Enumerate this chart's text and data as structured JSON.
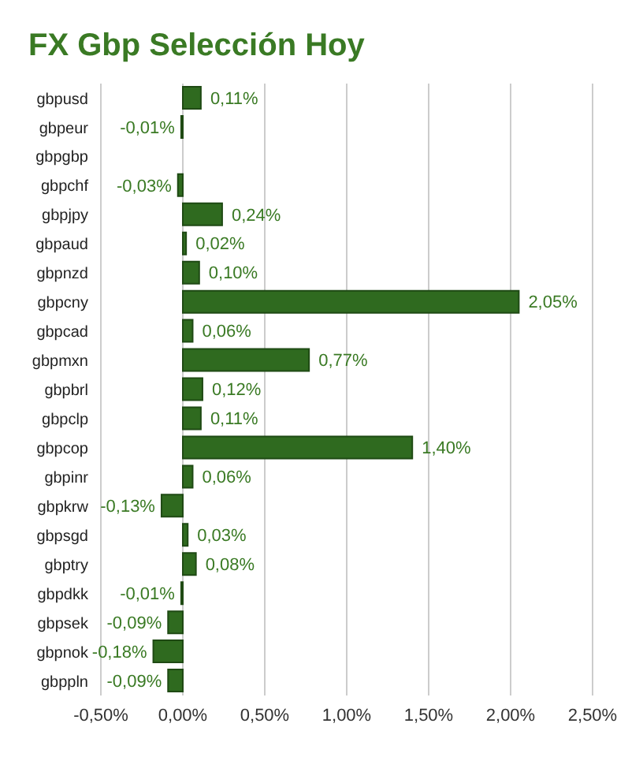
{
  "chart_data": {
    "type": "bar",
    "orientation": "horizontal",
    "title": "FX Gbp Selección Hoy",
    "categories": [
      "gbpusd",
      "gbpeur",
      "gbpgbp",
      "gbpchf",
      "gbpjpy",
      "gbpaud",
      "gbpnzd",
      "gbpcny",
      "gbpcad",
      "gbpmxn",
      "gbpbrl",
      "gbpclp",
      "gbpcop",
      "gbpinr",
      "gbpkrw",
      "gbpsgd",
      "gbptry",
      "gbpdkk",
      "gbpsek",
      "gbpnok",
      "gbppln"
    ],
    "values": [
      0.11,
      -0.01,
      0,
      -0.03,
      0.24,
      0.02,
      0.1,
      2.05,
      0.06,
      0.77,
      0.12,
      0.11,
      1.4,
      0.06,
      -0.13,
      0.03,
      0.08,
      -0.01,
      -0.09,
      -0.18,
      -0.09
    ],
    "value_labels": [
      "0,11%",
      "-0,01%",
      null,
      "-0,03%",
      "0,24%",
      "0,02%",
      "0,10%",
      "2,05%",
      "0,06%",
      "0,77%",
      "0,12%",
      "0,11%",
      "1,40%",
      "0,06%",
      "-0,13%",
      "0,03%",
      "0,08%",
      "-0,01%",
      "-0,09%",
      "-0,18%",
      "-0,09%"
    ],
    "color": "#2f6a1f",
    "xlim": [
      -0.5,
      2.5
    ],
    "xticks": [
      {
        "value": -0.5,
        "label": "-0,50%"
      },
      {
        "value": 0,
        "label": "0,00%"
      },
      {
        "value": 0.5,
        "label": "0,50%"
      },
      {
        "value": 1,
        "label": "1,00%"
      },
      {
        "value": 1.5,
        "label": "1,50%"
      },
      {
        "value": 2,
        "label": "2,00%"
      },
      {
        "value": 2.5,
        "label": "2,50%"
      }
    ],
    "grid": "x",
    "legend": false
  }
}
